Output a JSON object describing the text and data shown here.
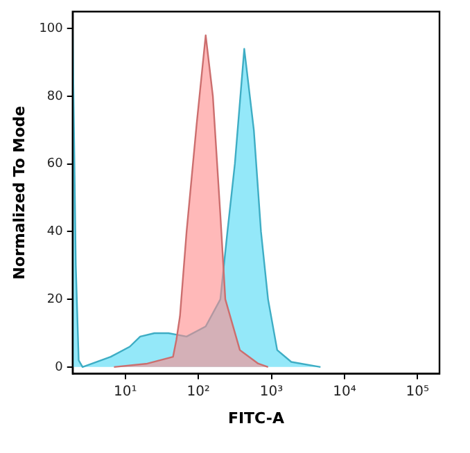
{
  "chart_data": {
    "type": "area",
    "xlabel": "FITC-A",
    "ylabel": "Normalized To Mode",
    "log": "x",
    "xlim": [
      1.9,
      200000
    ],
    "ylim": [
      -2,
      105
    ],
    "xticks": [
      {
        "value": 10,
        "label": "10¹"
      },
      {
        "value": 100,
        "label": "10²"
      },
      {
        "value": 1000,
        "label": "10³"
      },
      {
        "value": 10000,
        "label": "10⁴"
      },
      {
        "value": 100000,
        "label": "10⁵"
      }
    ],
    "yticks": [
      0,
      20,
      40,
      60,
      80,
      100
    ],
    "grid": false,
    "legend": false,
    "marker": "none",
    "series": [
      {
        "color": "#ff8a8a",
        "x": [
          7,
          20,
          45,
          50,
          56,
          69,
          95,
          126,
          158,
          200,
          234,
          370,
          660,
          900
        ],
        "values": [
          0,
          1,
          3,
          8,
          15,
          40,
          72,
          98,
          80,
          45,
          20,
          5,
          1,
          0
        ]
      },
      {
        "color": "#4dd8f5",
        "x": [
          1.9,
          2.1,
          2.3,
          2.6,
          6.3,
          11.5,
          16,
          25,
          39,
          69,
          126,
          200,
          250,
          316,
          425,
          575,
          720,
          900,
          1200,
          1870,
          4700
        ],
        "values": [
          100,
          30,
          2,
          0,
          3,
          6,
          9,
          10,
          10,
          9,
          12,
          20,
          40,
          60,
          94,
          70,
          40,
          20,
          5,
          1.5,
          0
        ]
      }
    ]
  }
}
